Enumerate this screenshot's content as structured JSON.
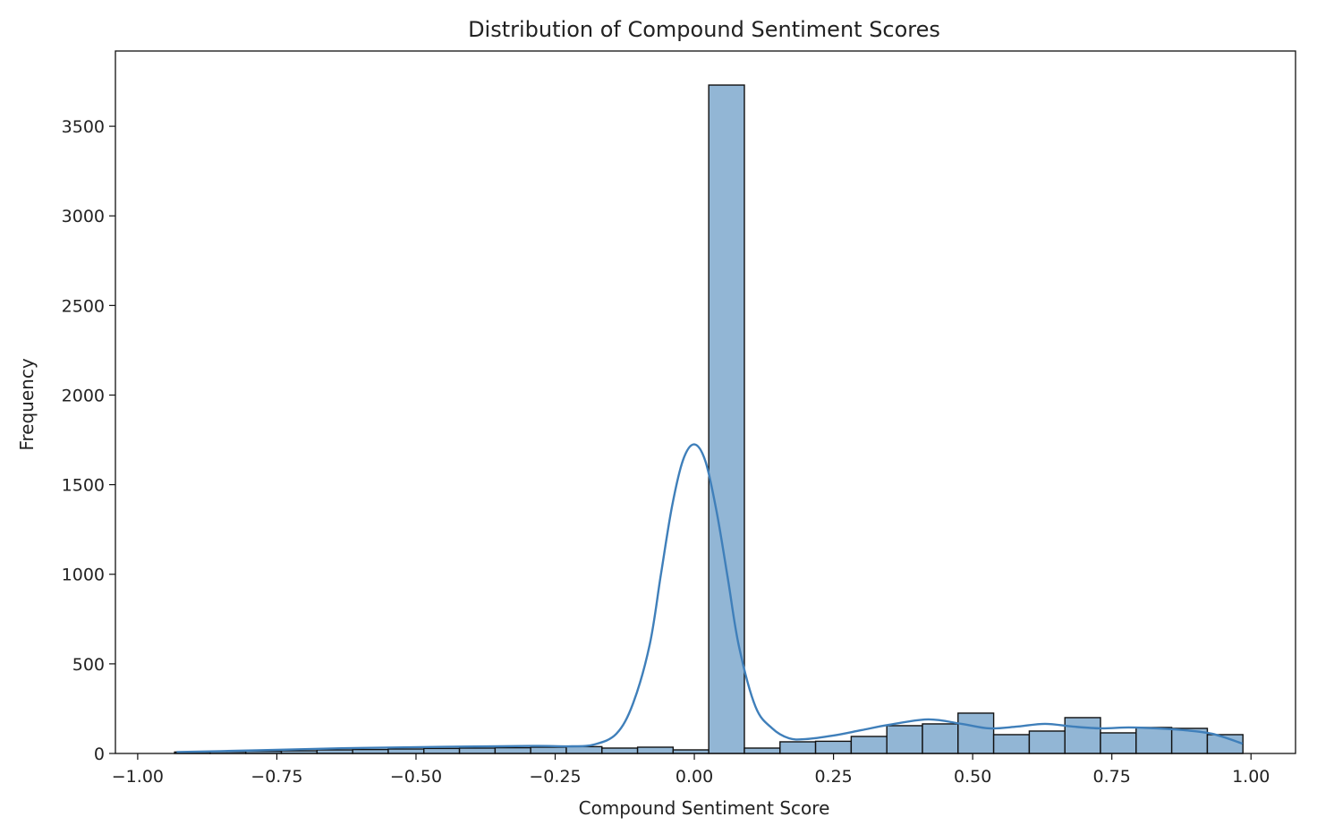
{
  "chart_data": {
    "type": "bar",
    "title": "Distribution of Compound Sentiment Scores",
    "xlabel": "Compound Sentiment Score",
    "ylabel": "Frequency",
    "xlim": [
      -1.04,
      1.08
    ],
    "ylim": [
      0,
      3920
    ],
    "xticks": [
      -1.0,
      -0.75,
      -0.5,
      -0.25,
      0.0,
      0.25,
      0.5,
      0.75,
      1.0
    ],
    "xtick_labels": [
      "−1.00",
      "−0.75",
      "−0.50",
      "−0.25",
      "0.00",
      "0.25",
      "0.50",
      "0.75",
      "1.00"
    ],
    "yticks": [
      0,
      500,
      1000,
      1500,
      2000,
      2500,
      3000,
      3500
    ],
    "ytick_labels": [
      "0",
      "500",
      "1000",
      "1500",
      "2000",
      "2500",
      "3000",
      "3500"
    ],
    "bin_edges": [
      -0.9337,
      -0.8697,
      -0.8058,
      -0.7418,
      -0.6778,
      -0.6138,
      -0.5499,
      -0.4859,
      -0.4219,
      -0.3579,
      -0.294,
      -0.23,
      -0.166,
      -0.102,
      -0.0381,
      0.0259,
      0.0899,
      0.1539,
      0.2178,
      0.2818,
      0.3458,
      0.4098,
      0.4737,
      0.5377,
      0.6017,
      0.6657,
      0.7296,
      0.7936,
      0.8576,
      0.9216,
      0.9855
    ],
    "values": [
      8,
      10,
      12,
      15,
      20,
      22,
      25,
      28,
      30,
      32,
      35,
      38,
      30,
      35,
      20,
      3730,
      30,
      65,
      68,
      95,
      155,
      165,
      225,
      105,
      125,
      200,
      115,
      145,
      140,
      105,
      125
    ],
    "kde": {
      "x": [
        -0.93,
        -0.85,
        -0.75,
        -0.65,
        -0.55,
        -0.45,
        -0.35,
        -0.28,
        -0.22,
        -0.18,
        -0.14,
        -0.11,
        -0.08,
        -0.06,
        -0.04,
        -0.02,
        0.0,
        0.02,
        0.04,
        0.06,
        0.08,
        0.11,
        0.14,
        0.17,
        0.2,
        0.25,
        0.3,
        0.35,
        0.42,
        0.48,
        0.53,
        0.58,
        0.63,
        0.68,
        0.73,
        0.78,
        0.83,
        0.88,
        0.93,
        0.985
      ],
      "y": [
        8,
        13,
        20,
        28,
        33,
        37,
        40,
        42,
        40,
        50,
        110,
        280,
        610,
        1000,
        1380,
        1640,
        1725,
        1630,
        1350,
        980,
        600,
        260,
        140,
        85,
        80,
        100,
        130,
        160,
        190,
        165,
        140,
        150,
        165,
        150,
        140,
        145,
        140,
        130,
        110,
        55
      ]
    },
    "bar_color": "#92b6d5",
    "bar_edge_color": "#111111",
    "kde_color": "#3f7fba",
    "grid": false,
    "legend": false
  }
}
